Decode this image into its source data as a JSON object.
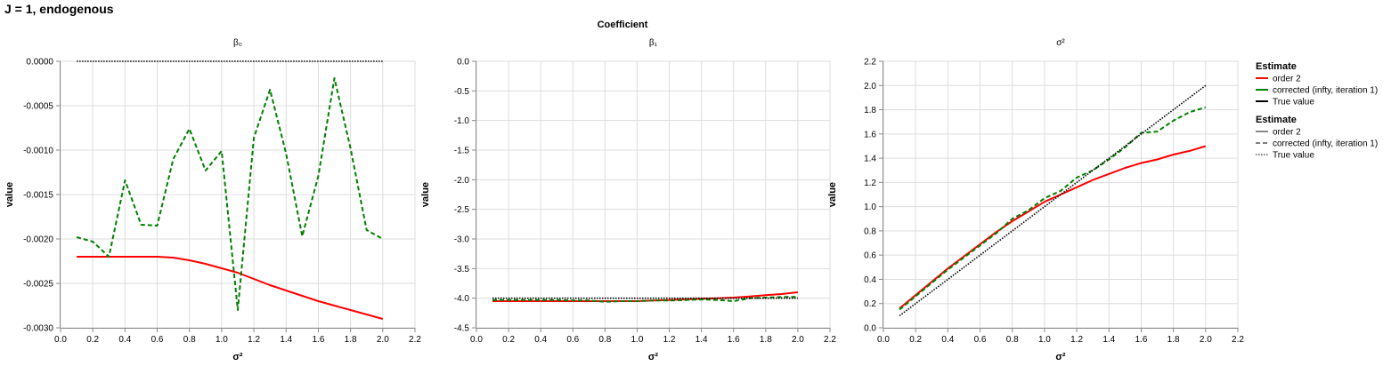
{
  "page": {
    "title": "J = 1, endogenous",
    "facet_header": "Coefficient"
  },
  "chart_data": [
    {
      "type": "line",
      "title": "β₀",
      "xlabel": "σ²",
      "ylabel": "value",
      "xlim": [
        0,
        2.2
      ],
      "ylim": [
        -0.003,
        0
      ],
      "xticks": [
        0.0,
        0.2,
        0.4,
        0.6,
        0.8,
        1.0,
        1.2,
        1.4,
        1.6,
        1.8,
        2.0,
        2.2
      ],
      "yticks": [
        0.0,
        -0.0005,
        -0.001,
        -0.0015,
        -0.002,
        -0.0025,
        -0.003
      ],
      "ytick_labels": [
        "0.0000",
        "-0.0005",
        "-0.0010",
        "-0.0015",
        "-0.0020",
        "-0.0025",
        "-0.0030"
      ],
      "grid": true,
      "x": [
        0.1,
        0.2,
        0.3,
        0.4,
        0.5,
        0.6,
        0.7,
        0.8,
        0.9,
        1.0,
        1.1,
        1.2,
        1.3,
        1.4,
        1.5,
        1.6,
        1.7,
        1.8,
        1.9,
        2.0
      ],
      "series": [
        {
          "name": "True value",
          "color": "#000000",
          "dash": "dotted",
          "values": [
            0,
            0,
            0,
            0,
            0,
            0,
            0,
            0,
            0,
            0,
            0,
            0,
            0,
            0,
            0,
            0,
            0,
            0,
            0,
            0
          ]
        },
        {
          "name": "order 2",
          "color": "#ff0000",
          "dash": "solid",
          "values": [
            -0.0022,
            -0.0022,
            -0.0022,
            -0.0022,
            -0.0022,
            -0.0022,
            -0.00221,
            -0.00224,
            -0.00228,
            -0.00233,
            -0.00238,
            -0.00245,
            -0.00252,
            -0.00258,
            -0.00264,
            -0.0027,
            -0.00275,
            -0.0028,
            -0.00285,
            -0.0029
          ]
        },
        {
          "name": "corrected (infty, iteration 1)",
          "color": "#008000",
          "dash": "dashed",
          "values": [
            -0.00198,
            -0.00203,
            -0.0022,
            -0.00134,
            -0.00184,
            -0.00185,
            -0.0011,
            -0.00076,
            -0.00123,
            -0.00101,
            -0.0028,
            -0.00086,
            -0.00032,
            -0.00104,
            -0.00197,
            -0.00129,
            -0.00019,
            -0.00098,
            -0.0019,
            -0.002
          ]
        }
      ]
    },
    {
      "type": "line",
      "title": "β₁",
      "xlabel": "σ²",
      "ylabel": "value",
      "xlim": [
        0,
        2.2
      ],
      "ylim": [
        -4.5,
        0
      ],
      "xticks": [
        0.0,
        0.2,
        0.4,
        0.6,
        0.8,
        1.0,
        1.2,
        1.4,
        1.6,
        1.8,
        2.0,
        2.2
      ],
      "yticks": [
        0.0,
        -0.5,
        -1.0,
        -1.5,
        -2.0,
        -2.5,
        -3.0,
        -3.5,
        -4.0,
        -4.5
      ],
      "ytick_labels": [
        "0.0",
        "-0.5",
        "-1.0",
        "-1.5",
        "-2.0",
        "-2.5",
        "-3.0",
        "-3.5",
        "-4.0",
        "-4.5"
      ],
      "grid": true,
      "x": [
        0.1,
        0.2,
        0.3,
        0.4,
        0.5,
        0.6,
        0.7,
        0.8,
        0.9,
        1.0,
        1.1,
        1.2,
        1.3,
        1.4,
        1.5,
        1.6,
        1.7,
        1.8,
        1.9,
        2.0
      ],
      "series": [
        {
          "name": "True value",
          "color": "#000000",
          "dash": "dotted",
          "values": [
            -4,
            -4,
            -4,
            -4,
            -4,
            -4,
            -4,
            -4,
            -4,
            -4,
            -4,
            -4,
            -4,
            -4,
            -4,
            -4,
            -4,
            -4,
            -4,
            -4
          ]
        },
        {
          "name": "order 2",
          "color": "#ff0000",
          "dash": "solid",
          "values": [
            -4.05,
            -4.05,
            -4.05,
            -4.05,
            -4.05,
            -4.05,
            -4.05,
            -4.05,
            -4.05,
            -4.05,
            -4.04,
            -4.03,
            -4.02,
            -4.01,
            -4.0,
            -3.99,
            -3.97,
            -3.95,
            -3.93,
            -3.9
          ]
        },
        {
          "name": "corrected (infty, iteration 1)",
          "color": "#008000",
          "dash": "dashed",
          "values": [
            -4.03,
            -4.03,
            -4.03,
            -4.03,
            -4.03,
            -4.04,
            -4.04,
            -4.06,
            -4.05,
            -4.05,
            -4.04,
            -4.04,
            -4.03,
            -4.02,
            -4.03,
            -4.05,
            -4.0,
            -3.99,
            -3.98,
            -3.98
          ]
        }
      ]
    },
    {
      "type": "line",
      "title": "σ²",
      "xlabel": "σ²",
      "ylabel": "value",
      "xlim": [
        0,
        2.2
      ],
      "ylim": [
        0,
        2.2
      ],
      "xticks": [
        0.0,
        0.2,
        0.4,
        0.6,
        0.8,
        1.0,
        1.2,
        1.4,
        1.6,
        1.8,
        2.0,
        2.2
      ],
      "yticks": [
        0.0,
        0.2,
        0.4,
        0.6,
        0.8,
        1.0,
        1.2,
        1.4,
        1.6,
        1.8,
        2.0,
        2.2
      ],
      "ytick_labels": [
        "0.0",
        "0.2",
        "0.4",
        "0.6",
        "0.8",
        "1.0",
        "1.2",
        "1.4",
        "1.6",
        "1.8",
        "2.0",
        "2.2"
      ],
      "grid": true,
      "x": [
        0.1,
        0.2,
        0.3,
        0.4,
        0.5,
        0.6,
        0.7,
        0.8,
        0.9,
        1.0,
        1.1,
        1.2,
        1.3,
        1.4,
        1.5,
        1.6,
        1.7,
        1.8,
        1.9,
        2.0
      ],
      "series": [
        {
          "name": "True value",
          "color": "#000000",
          "dash": "dotted",
          "values": [
            0.1,
            0.2,
            0.3,
            0.4,
            0.5,
            0.6,
            0.7,
            0.8,
            0.9,
            1.0,
            1.1,
            1.2,
            1.3,
            1.4,
            1.5,
            1.6,
            1.7,
            1.8,
            1.9,
            2.0
          ]
        },
        {
          "name": "order 2",
          "color": "#ff0000",
          "dash": "solid",
          "values": [
            0.16,
            0.27,
            0.38,
            0.49,
            0.59,
            0.69,
            0.79,
            0.88,
            0.96,
            1.04,
            1.1,
            1.16,
            1.22,
            1.27,
            1.32,
            1.36,
            1.39,
            1.43,
            1.46,
            1.5
          ]
        },
        {
          "name": "corrected (infty, iteration 1)",
          "color": "#008000",
          "dash": "dashed",
          "values": [
            0.15,
            0.26,
            0.37,
            0.48,
            0.58,
            0.68,
            0.78,
            0.9,
            0.97,
            1.07,
            1.13,
            1.24,
            1.3,
            1.39,
            1.49,
            1.61,
            1.62,
            1.71,
            1.78,
            1.82
          ]
        }
      ]
    }
  ],
  "legends": [
    {
      "title": "Estimate",
      "mode": "color",
      "entries": [
        {
          "label": "order 2",
          "color": "#ff0000"
        },
        {
          "label": "corrected (infty, iteration 1)",
          "color": "#008000"
        },
        {
          "label": "True value",
          "color": "#000000"
        }
      ]
    },
    {
      "title": "Estimate",
      "mode": "dash",
      "entries": [
        {
          "label": "order 2",
          "dash": "solid"
        },
        {
          "label": "corrected (infty, iteration 1)",
          "dash": "dashed"
        },
        {
          "label": "True value",
          "dash": "dotted"
        }
      ]
    }
  ]
}
